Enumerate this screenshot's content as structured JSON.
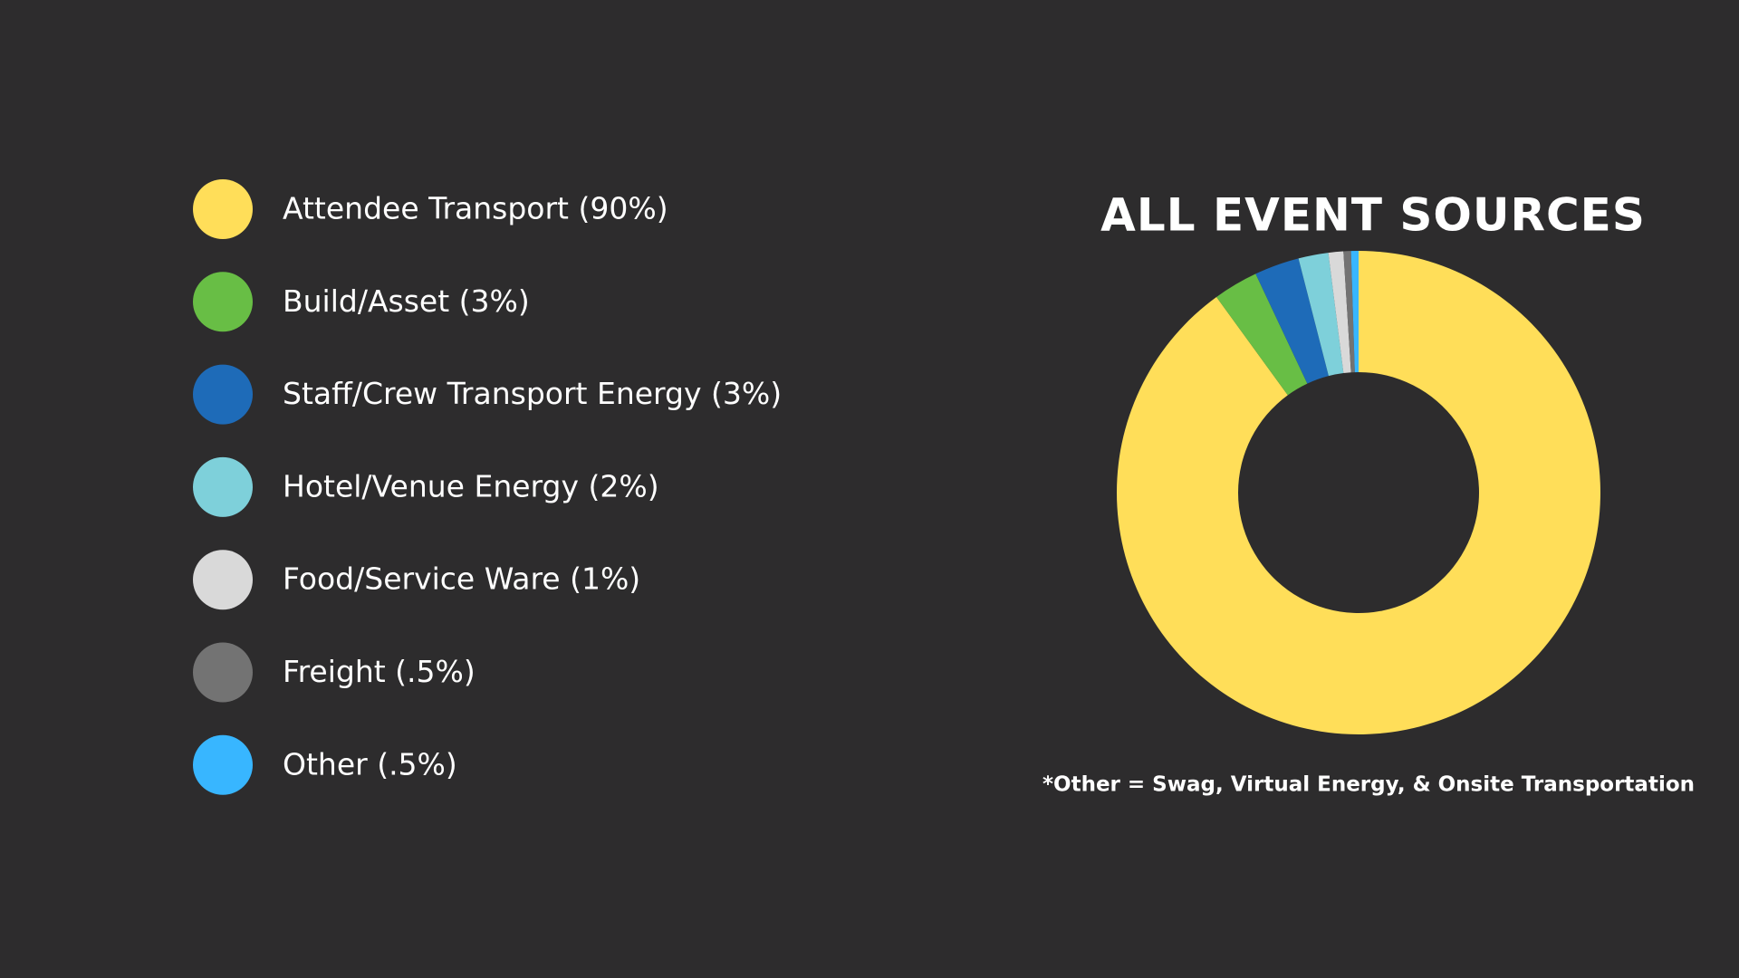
{
  "chart_data": {
    "type": "donut",
    "title": "ALL EVENT SOURCES",
    "categories": [
      "Attendee Transport (90%)",
      "Build/Asset (3%)",
      "Staff/Crew Transport Energy (3%)",
      "Hotel/Venue Energy (2%)",
      "Food/Service Ware (1%)",
      "Freight (.5%)",
      "Other (.5%)"
    ],
    "values": [
      90,
      3,
      3,
      2,
      1,
      0.5,
      0.5
    ],
    "colors": [
      "#ffde59",
      "#68be45",
      "#1e6bb8",
      "#7ed0da",
      "#d9d9d9",
      "#737373",
      "#38b6ff"
    ],
    "annotation": "*Other = Swag, Virtual Energy, & Onsite Transportation"
  }
}
